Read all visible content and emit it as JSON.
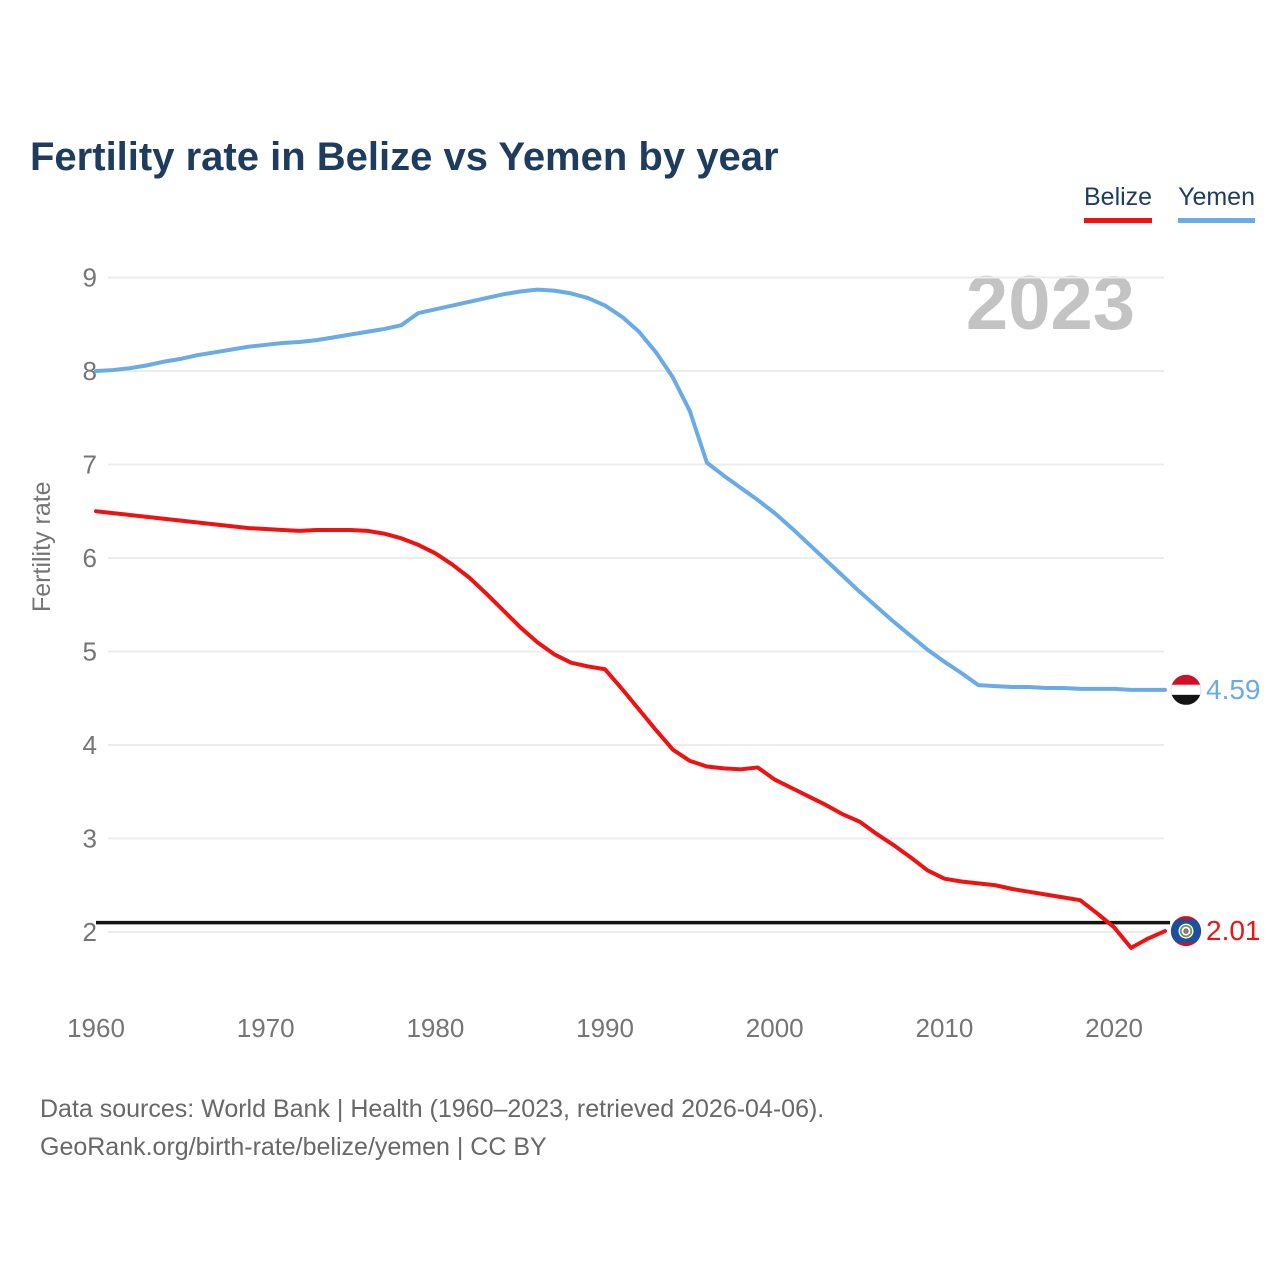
{
  "title": "Fertility rate in Belize vs Yemen by year",
  "legend": {
    "items": [
      {
        "label": "Belize",
        "color": "#ee1212"
      },
      {
        "label": "Yemen",
        "color": "#6aabe6"
      }
    ]
  },
  "watermark": "2023",
  "footer": {
    "line1": "Data sources: World Bank | Health (1960–2023, retrieved 2026-04-06).",
    "line2": "GeoRank.org/birth-rate/belize/yemen | CC BY"
  },
  "chart_data": {
    "type": "line",
    "title": "Fertility rate in Belize vs Yemen by year",
    "xlabel": "",
    "ylabel": "Fertility rate",
    "xlim": [
      1960,
      2023
    ],
    "ylim": [
      1.7,
      9.3
    ],
    "grid": "horizontal",
    "legend_position": "top-right",
    "y_ticks": [
      2,
      3,
      4,
      5,
      6,
      7,
      8,
      9
    ],
    "x_ticks": [
      1960,
      1970,
      1980,
      1990,
      2000,
      2010,
      2020
    ],
    "reference_line": {
      "value": 2.1,
      "color": "#141414"
    },
    "axis_text_color": "#757575",
    "gridline_color": "#ececec",
    "x": [
      1960,
      1961,
      1962,
      1963,
      1964,
      1965,
      1966,
      1967,
      1968,
      1969,
      1970,
      1971,
      1972,
      1973,
      1974,
      1975,
      1976,
      1977,
      1978,
      1979,
      1980,
      1981,
      1982,
      1983,
      1984,
      1985,
      1986,
      1987,
      1988,
      1989,
      1990,
      1991,
      1992,
      1993,
      1994,
      1995,
      1996,
      1997,
      1998,
      1999,
      2000,
      2001,
      2002,
      2003,
      2004,
      2005,
      2006,
      2007,
      2008,
      2009,
      2010,
      2011,
      2012,
      2013,
      2014,
      2015,
      2016,
      2017,
      2018,
      2019,
      2020,
      2021,
      2022,
      2023
    ],
    "series": [
      {
        "name": "Belize",
        "color": "#ee1212",
        "end_label": "2.01",
        "flag": "belize",
        "values": [
          6.5,
          6.48,
          6.46,
          6.44,
          6.42,
          6.4,
          6.38,
          6.36,
          6.34,
          6.32,
          6.31,
          6.3,
          6.29,
          6.3,
          6.3,
          6.3,
          6.29,
          6.26,
          6.21,
          6.14,
          6.05,
          5.93,
          5.79,
          5.62,
          5.44,
          5.26,
          5.1,
          4.97,
          4.88,
          4.84,
          4.81,
          4.6,
          4.38,
          4.16,
          3.95,
          3.83,
          3.77,
          3.75,
          3.74,
          3.76,
          3.63,
          3.54,
          3.45,
          3.36,
          3.26,
          3.18,
          3.05,
          2.93,
          2.8,
          2.66,
          2.57,
          2.54,
          2.52,
          2.5,
          2.46,
          2.43,
          2.4,
          2.37,
          2.34,
          2.2,
          2.05,
          1.83,
          1.93,
          2.01
        ]
      },
      {
        "name": "Yemen",
        "color": "#6aabe6",
        "end_label": "4.59",
        "flag": "yemen",
        "values": [
          8.0,
          8.01,
          8.03,
          8.06,
          8.1,
          8.13,
          8.17,
          8.2,
          8.23,
          8.26,
          8.28,
          8.3,
          8.31,
          8.33,
          8.36,
          8.39,
          8.42,
          8.45,
          8.49,
          8.62,
          8.66,
          8.7,
          8.74,
          8.78,
          8.82,
          8.85,
          8.87,
          8.86,
          8.83,
          8.78,
          8.7,
          8.58,
          8.42,
          8.2,
          7.93,
          7.57,
          7.02,
          6.88,
          6.75,
          6.62,
          6.48,
          6.32,
          6.15,
          5.98,
          5.81,
          5.64,
          5.48,
          5.32,
          5.17,
          5.02,
          4.89,
          4.77,
          4.64,
          4.63,
          4.62,
          4.62,
          4.61,
          4.61,
          4.6,
          4.6,
          4.6,
          4.59,
          4.59,
          4.59
        ]
      }
    ]
  }
}
